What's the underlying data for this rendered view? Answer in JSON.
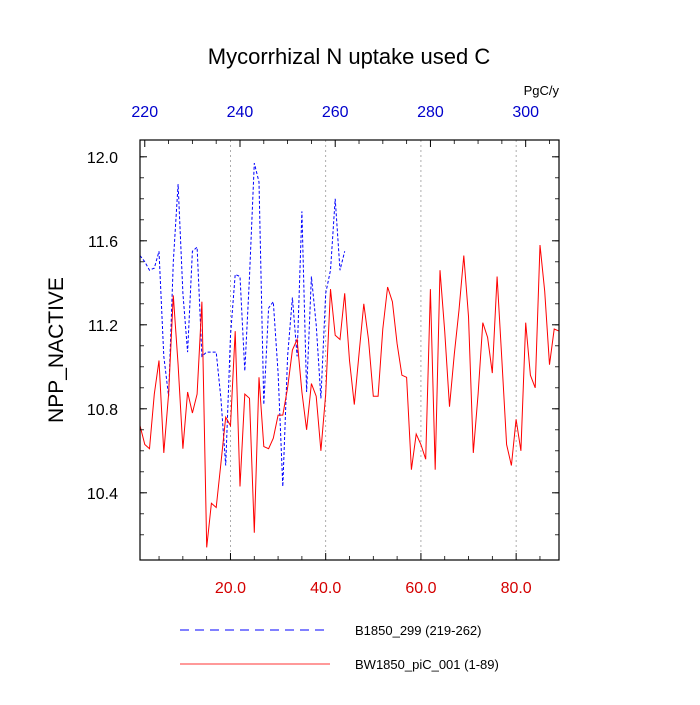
{
  "chart_data": {
    "type": "line",
    "title": "Mycorrhizal N uptake used C",
    "ylabel": "NPP_NACTIVE",
    "top_axis_unit": "PgC/y",
    "ylim": [
      10.08,
      12.08
    ],
    "yticks": [
      "10.4",
      "10.8",
      "11.2",
      "11.6",
      "12.0"
    ],
    "bottom_axis": {
      "range": [
        1,
        89
      ],
      "ticks": [
        20,
        40,
        60,
        80
      ],
      "tick_labels": [
        "20.0",
        "40.0",
        "60.0",
        "80.0"
      ],
      "color": "#d40000"
    },
    "top_axis": {
      "range": [
        219,
        307
      ],
      "ticks": [
        220,
        240,
        260,
        280,
        300
      ],
      "tick_labels": [
        "220",
        "240",
        "260",
        "280",
        "300"
      ],
      "color": "#0000cc"
    },
    "series": [
      {
        "name": "B1850_299 (219-262)",
        "axis": "top",
        "color": "#0000ff",
        "style": "dashed",
        "x_start": 219,
        "values": [
          11.53,
          11.5,
          11.46,
          11.47,
          11.55,
          11.05,
          10.86,
          11.5,
          11.87,
          11.35,
          11.07,
          11.55,
          11.57,
          11.05,
          11.07,
          11.07,
          11.07,
          10.85,
          10.53,
          11.15,
          11.44,
          11.43,
          10.98,
          11.43,
          11.97,
          11.88,
          10.82,
          11.28,
          11.31,
          10.97,
          10.43,
          11.05,
          11.33,
          11.05,
          11.74,
          10.88,
          11.43,
          11.2,
          10.85,
          11.35,
          11.46,
          11.8,
          11.46,
          11.55
        ]
      },
      {
        "name": "BW1850_piC_001 (1-89)",
        "axis": "bottom",
        "color": "#ff0000",
        "style": "solid",
        "x_start": 1,
        "values": [
          10.72,
          10.63,
          10.61,
          10.87,
          11.03,
          10.59,
          10.87,
          11.34,
          11.01,
          10.61,
          10.88,
          10.78,
          10.87,
          11.31,
          10.14,
          10.35,
          10.33,
          10.54,
          10.76,
          10.72,
          11.17,
          10.43,
          10.87,
          10.85,
          10.21,
          10.95,
          10.62,
          10.61,
          10.66,
          10.77,
          10.77,
          10.9,
          11.08,
          11.13,
          10.88,
          10.7,
          10.92,
          10.86,
          10.6,
          10.87,
          11.37,
          11.15,
          11.13,
          11.35,
          11.03,
          10.82,
          11.06,
          11.3,
          11.13,
          10.86,
          10.86,
          11.18,
          11.38,
          11.31,
          11.11,
          10.96,
          10.95,
          10.51,
          10.68,
          10.63,
          10.56,
          11.37,
          10.51,
          11.46,
          11.17,
          10.81,
          11.06,
          11.27,
          11.53,
          11.24,
          10.59,
          10.87,
          11.21,
          11.14,
          10.97,
          11.43,
          11.03,
          10.63,
          10.53,
          10.75,
          10.6,
          11.21,
          10.96,
          10.9,
          11.58,
          11.36,
          11.01,
          11.18,
          11.17
        ]
      }
    ],
    "legend": [
      "B1850_299 (219-262)",
      "BW1850_piC_001 (1-89)"
    ]
  }
}
